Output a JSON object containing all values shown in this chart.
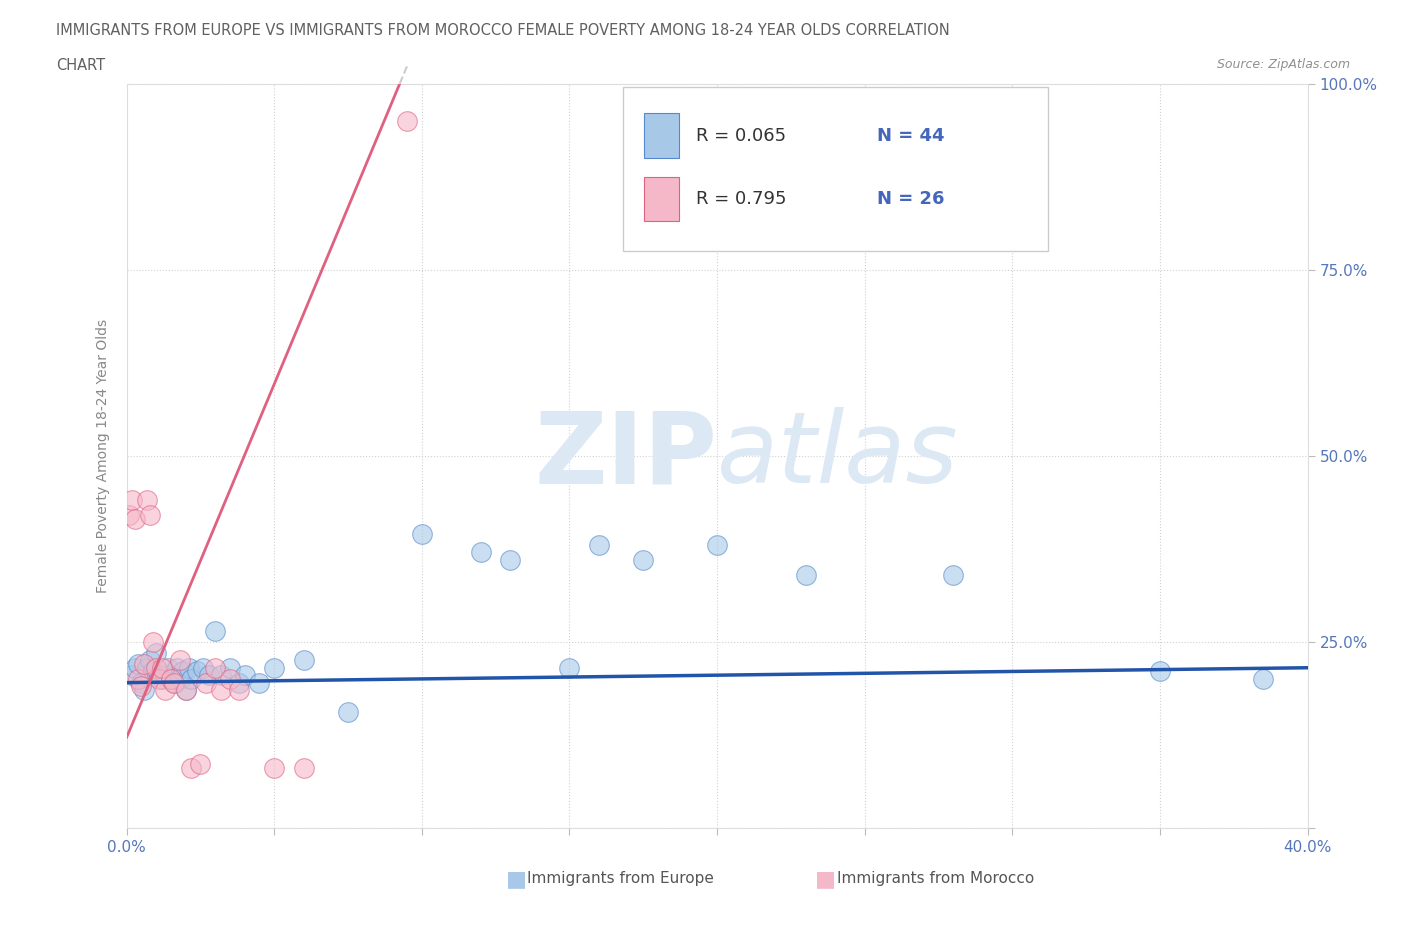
{
  "title_line1": "IMMIGRANTS FROM EUROPE VS IMMIGRANTS FROM MOROCCO FEMALE POVERTY AMONG 18-24 YEAR OLDS CORRELATION",
  "title_line2": "CHART",
  "source_text": "Source: ZipAtlas.com",
  "ylabel": "Female Poverty Among 18-24 Year Olds",
  "xlim": [
    0.0,
    0.4
  ],
  "ylim": [
    0.0,
    1.0
  ],
  "color_europe": "#a8c8e8",
  "color_europe_edge": "#5588cc",
  "color_morocco": "#f5b8c8",
  "color_morocco_edge": "#e06080",
  "color_europe_line": "#2255aa",
  "color_morocco_line": "#e06080",
  "watermark_color": "#dde8f5",
  "europe_x": [
    0.002,
    0.003,
    0.004,
    0.005,
    0.006,
    0.007,
    0.008,
    0.009,
    0.01,
    0.011,
    0.012,
    0.013,
    0.014,
    0.015,
    0.016,
    0.017,
    0.018,
    0.019,
    0.02,
    0.021,
    0.022,
    0.024,
    0.026,
    0.028,
    0.03,
    0.032,
    0.035,
    0.038,
    0.04,
    0.045,
    0.05,
    0.06,
    0.075,
    0.1,
    0.13,
    0.15,
    0.175,
    0.2,
    0.23,
    0.28,
    0.35,
    0.385,
    0.12,
    0.16
  ],
  "europe_y": [
    0.205,
    0.215,
    0.22,
    0.195,
    0.185,
    0.215,
    0.225,
    0.21,
    0.235,
    0.205,
    0.2,
    0.205,
    0.215,
    0.2,
    0.195,
    0.215,
    0.2,
    0.21,
    0.185,
    0.215,
    0.2,
    0.21,
    0.215,
    0.205,
    0.265,
    0.205,
    0.215,
    0.195,
    0.205,
    0.195,
    0.215,
    0.225,
    0.155,
    0.395,
    0.36,
    0.215,
    0.36,
    0.38,
    0.34,
    0.34,
    0.21,
    0.2,
    0.37,
    0.38
  ],
  "morocco_x": [
    0.001,
    0.002,
    0.003,
    0.004,
    0.005,
    0.006,
    0.007,
    0.008,
    0.009,
    0.01,
    0.011,
    0.012,
    0.013,
    0.015,
    0.016,
    0.018,
    0.02,
    0.022,
    0.025,
    0.027,
    0.03,
    0.032,
    0.035,
    0.038,
    0.05,
    0.06
  ],
  "morocco_y": [
    0.42,
    0.44,
    0.415,
    0.2,
    0.19,
    0.22,
    0.44,
    0.42,
    0.25,
    0.215,
    0.2,
    0.215,
    0.185,
    0.2,
    0.195,
    0.225,
    0.185,
    0.08,
    0.085,
    0.195,
    0.215,
    0.185,
    0.2,
    0.185,
    0.08,
    0.08
  ],
  "morocco_trend_x": [
    0.002,
    0.095
  ],
  "morocco_trend_y_start": 0.14,
  "morocco_trend_slope": 9.5,
  "europe_trend_x": [
    0.0,
    0.4
  ],
  "europe_trend_y": [
    0.195,
    0.215
  ]
}
